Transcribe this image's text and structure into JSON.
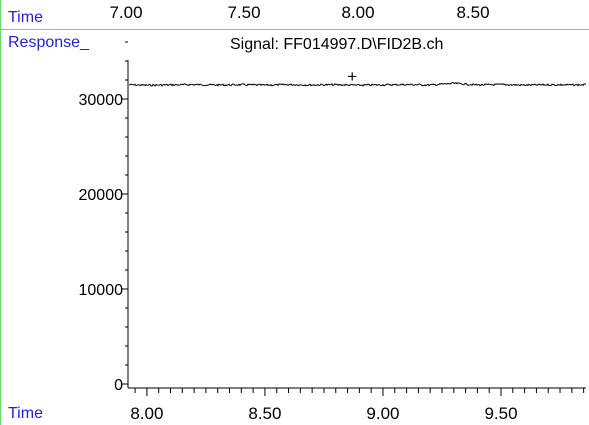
{
  "top_axis": {
    "label": "Time",
    "ticks": [
      "7.00",
      "7.50",
      "8.00",
      "8.50"
    ]
  },
  "bottom_axis_label": "Time",
  "colors": {
    "label": "#1f1fe0",
    "rule": "#66dd66",
    "trace": "#000000"
  },
  "chart_data": {
    "type": "line",
    "title": "Signal: FF014997.D\\FID2B.ch",
    "ylabel": "Response_",
    "xlabel": "Time",
    "xlim": [
      7.92,
      9.86
    ],
    "ylim": [
      0,
      36000
    ],
    "y_ticks": [
      0,
      10000,
      20000,
      30000
    ],
    "x_ticks": [
      8.0,
      8.5,
      9.0,
      9.5
    ],
    "x_tick_labels": [
      "8.00",
      "8.50",
      "9.00",
      "9.50"
    ],
    "annotations": [
      {
        "text": "+",
        "x": 8.87,
        "y": 32300
      }
    ],
    "series": [
      {
        "x": [
          7.92,
          8.0,
          8.1,
          8.2,
          8.3,
          8.4,
          8.5,
          8.6,
          8.7,
          8.8,
          8.9,
          9.0,
          9.1,
          9.2,
          9.3,
          9.4,
          9.5,
          9.6,
          9.7,
          9.8,
          9.86
        ],
        "values": [
          31500,
          31450,
          31480,
          31520,
          31470,
          31500,
          31460,
          31510,
          31480,
          31500,
          31450,
          31490,
          31520,
          31470,
          31650,
          31480,
          31520,
          31460,
          31500,
          31480,
          31500
        ]
      }
    ]
  }
}
